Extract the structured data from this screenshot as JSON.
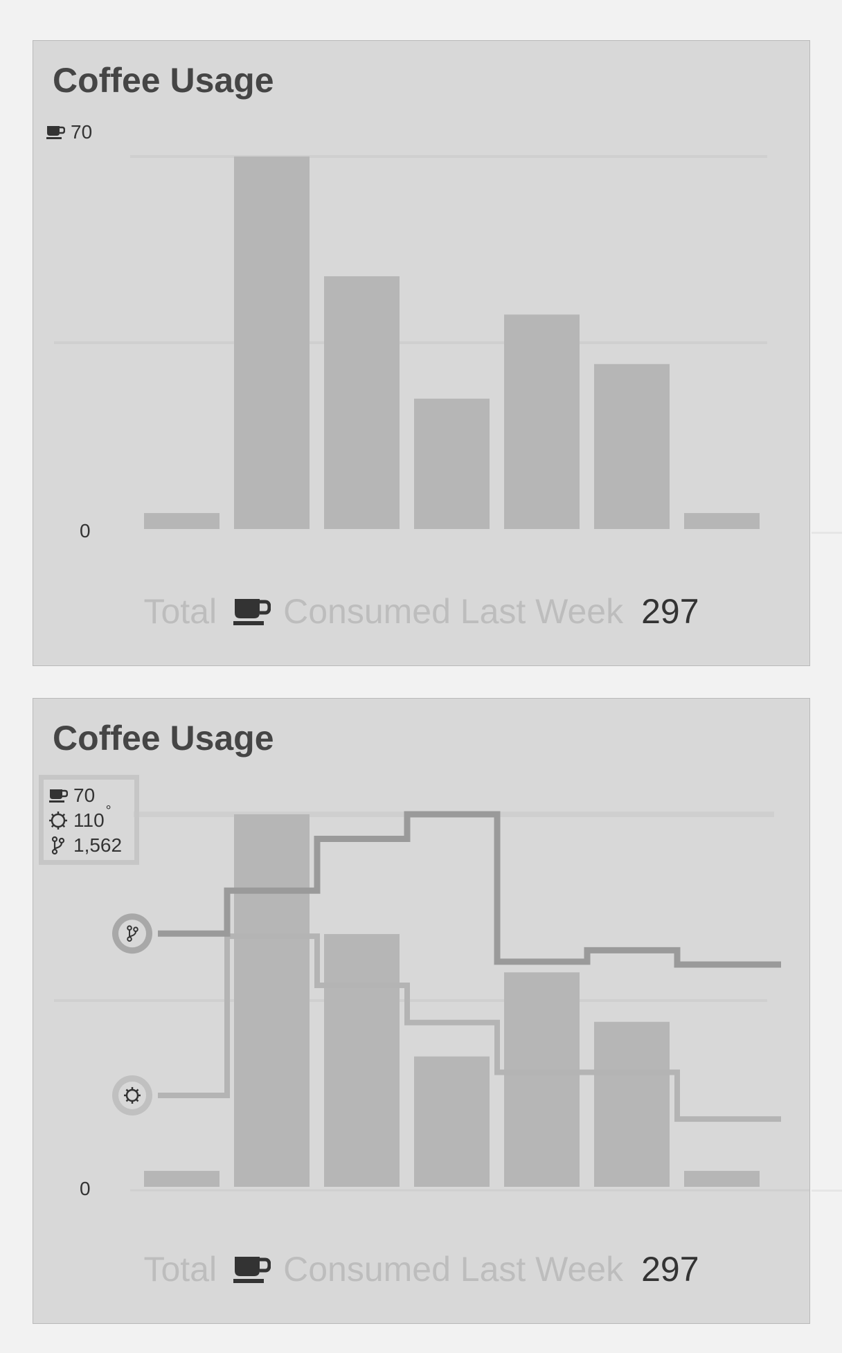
{
  "colors": {
    "panel_bg": "#d8d8d8",
    "bar": "#b6b6b6",
    "grid": "#cfcfcf",
    "commits_line": "#9a9a9a",
    "temp_line": "#b4b4b4",
    "icon_circle": "#c0c0c0",
    "text_dark": "#333333",
    "text_light": "#bdbdbd"
  },
  "panels": [
    {
      "title": "Coffee Usage",
      "legend": {
        "coffee_max": "70"
      },
      "zero_label": "0",
      "totals": {
        "prefix": "Total",
        "icon": "coffee-cup-icon",
        "label": "Consumed Last Week",
        "value": "297"
      }
    },
    {
      "title": "Coffee Usage",
      "legend": {
        "coffee_max": "70",
        "temp_max": "110",
        "temp_unit": "°",
        "commits_max": "1,562"
      },
      "zero_label": "0",
      "totals": {
        "prefix": "Total",
        "icon": "coffee-cup-icon",
        "label": "Consumed Last Week",
        "value": "297"
      }
    }
  ],
  "chart_data": [
    {
      "type": "bar",
      "title": "Coffee Usage",
      "categories": [
        "",
        "",
        "",
        "",
        "",
        "",
        ""
      ],
      "series": [
        {
          "values": [
            3,
            70,
            47.5,
            24.5,
            40.3,
            31,
            3
          ]
        }
      ],
      "ylim": [
        0,
        70
      ],
      "grid": true
    },
    {
      "type": "bar",
      "title": "Coffee Usage",
      "categories": [
        "",
        "",
        "",
        "",
        "",
        "",
        ""
      ],
      "series": [
        {
          "type": "bar",
          "values": [
            3,
            70,
            47.5,
            24.5,
            40.3,
            31,
            3
          ],
          "ylim": [
            0,
            70
          ]
        },
        {
          "type": "step",
          "icon": "thermometer-icon",
          "values": [
            27,
            74,
            59.5,
            48.5,
            33.8,
            33.8,
            20
          ],
          "ylim": [
            0,
            110
          ]
        },
        {
          "type": "step",
          "icon": "commits-icon",
          "values": [
            1062,
            1242,
            1459,
            1562,
            944,
            992,
            932
          ],
          "ylim": [
            0,
            1562
          ]
        }
      ],
      "grid": true
    }
  ]
}
